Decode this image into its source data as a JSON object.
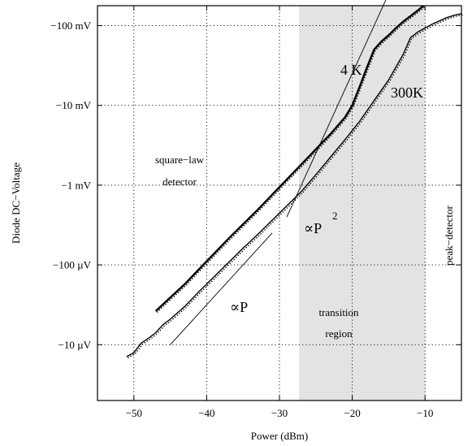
{
  "chart_data": {
    "type": "line",
    "xlabel": "Power (dBm)",
    "ylabel": "Diode DC−Voltage",
    "xlim": [
      -55,
      -5
    ],
    "ylim": [
      -5.7,
      -0.75
    ],
    "y_scale": "log10 (volts, magnitude)",
    "grid": true,
    "x_ticks": [
      -50,
      -40,
      -30,
      -20,
      -10
    ],
    "x_tick_labels": [
      "−50",
      "−40",
      "−30",
      "−20",
      "−10"
    ],
    "y_ticks": [
      -1,
      -2,
      -3,
      -4,
      -5
    ],
    "y_tick_labels": [
      "−100 mV",
      "−10 mV",
      "−1 mV",
      "−100 µV",
      "−10 µV"
    ],
    "shaded_region": {
      "x": [
        -27.3,
        -10
      ],
      "color": "#e3e3e3"
    },
    "series": [
      {
        "name": "4 K",
        "style": "thick solid with dotted fit",
        "x": [
          -47,
          -45,
          -43,
          -41,
          -39,
          -37,
          -35,
          -33,
          -31,
          -29,
          -27,
          -25,
          -23,
          -21,
          -20,
          -19,
          -18,
          -17,
          -16,
          -15,
          -14,
          -13,
          -12,
          -11,
          -10.2
        ],
        "y": [
          -4.58,
          -4.41,
          -4.24,
          -4.05,
          -3.86,
          -3.67,
          -3.49,
          -3.31,
          -3.12,
          -2.93,
          -2.74,
          -2.55,
          -2.36,
          -2.15,
          -2.0,
          -1.77,
          -1.53,
          -1.3,
          -1.2,
          -1.12,
          -1.03,
          -0.95,
          -0.88,
          -0.81,
          -0.75
        ]
      },
      {
        "name": "300K",
        "style": "solid with dotted fit",
        "x": [
          -51,
          -50,
          -49,
          -48,
          -47,
          -46,
          -45,
          -43,
          -41,
          -39,
          -37,
          -35,
          -33,
          -31,
          -29,
          -27,
          -25,
          -23,
          -21,
          -19,
          -17,
          -15,
          -13,
          -12,
          -11,
          -10,
          -9,
          -8,
          -7,
          -6,
          -5
        ],
        "y": [
          -5.15,
          -5.1,
          -4.98,
          -4.92,
          -4.85,
          -4.75,
          -4.68,
          -4.52,
          -4.33,
          -4.15,
          -3.97,
          -3.79,
          -3.62,
          -3.44,
          -3.26,
          -3.08,
          -2.87,
          -2.65,
          -2.43,
          -2.2,
          -1.94,
          -1.68,
          -1.36,
          -1.15,
          -1.08,
          -1.03,
          -0.98,
          -0.94,
          -0.9,
          -0.87,
          -0.85
        ]
      }
    ],
    "reference_lines": [
      {
        "label": "∝P",
        "x": [
          -45,
          -31
        ],
        "y": [
          -5.0,
          -3.6
        ]
      },
      {
        "label": "∝P²",
        "x": [
          -29,
          -15
        ],
        "y": [
          -3.4,
          -0.6
        ]
      }
    ],
    "annotations": {
      "square_law_line1": "square−law",
      "square_law_line2": "detector",
      "transition_line1": "transition",
      "transition_line2": "region",
      "peak_detector": "peak−detector",
      "label_4k": "4 K",
      "label_300k": "300K",
      "label_p": "∝P",
      "label_p2_base": "∝P",
      "label_p2_exp": "2"
    }
  }
}
